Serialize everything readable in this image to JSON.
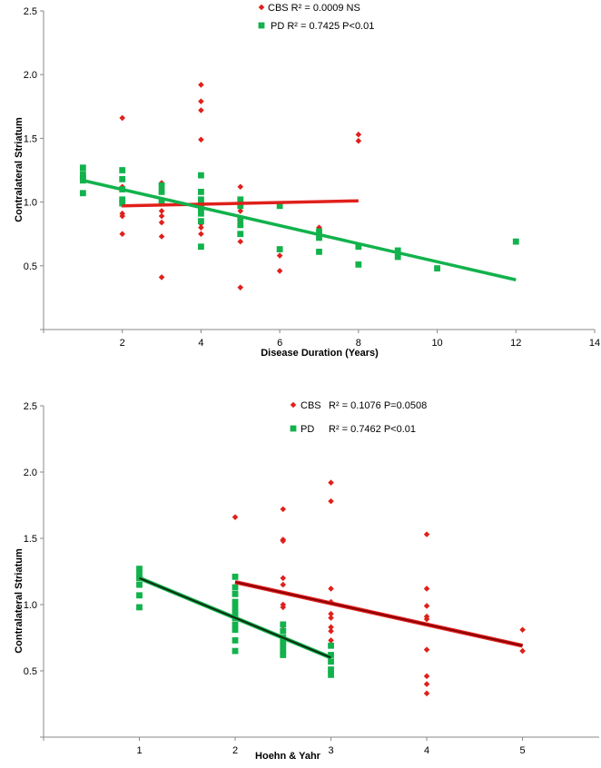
{
  "chart_data": [
    {
      "type": "scatter",
      "xlabel": "Disease Duration (Years)",
      "ylabel": "Contralateral Striatum",
      "xlim": [
        0,
        14
      ],
      "ylim": [
        0,
        2.5
      ],
      "xticks": [
        "2",
        "4",
        "6",
        "8",
        "10",
        "12",
        "14"
      ],
      "yticks": [
        "0.5",
        "1.0",
        "1.5",
        "2.0",
        "2.5"
      ],
      "grid": false,
      "legend_placement": "top-center",
      "series": [
        {
          "name": "CBS",
          "legend_label": "CBS  R² = 0.0009 NS",
          "marker": "diamond",
          "color": "#e0201b",
          "points": [
            [
              2,
              1.66
            ],
            [
              2,
              1.18
            ],
            [
              2,
              1.12
            ],
            [
              2,
              1.02
            ],
            [
              2,
              0.98
            ],
            [
              2,
              0.91
            ],
            [
              2,
              0.89
            ],
            [
              2,
              0.75
            ],
            [
              3,
              1.15
            ],
            [
              3,
              1.1
            ],
            [
              3,
              0.93
            ],
            [
              3,
              0.89
            ],
            [
              3,
              0.84
            ],
            [
              3,
              0.73
            ],
            [
              3,
              0.41
            ],
            [
              4,
              1.92
            ],
            [
              4,
              1.79
            ],
            [
              4,
              1.72
            ],
            [
              4,
              1.49
            ],
            [
              4,
              1.02
            ],
            [
              4,
              0.98
            ],
            [
              4,
              0.92
            ],
            [
              4,
              0.83
            ],
            [
              4,
              0.8
            ],
            [
              4,
              0.75
            ],
            [
              4,
              0.65
            ],
            [
              5,
              1.12
            ],
            [
              5,
              0.93
            ],
            [
              5,
              0.84
            ],
            [
              5,
              0.69
            ],
            [
              5,
              0.33
            ],
            [
              6,
              0.58
            ],
            [
              6,
              0.46
            ],
            [
              7,
              0.8
            ],
            [
              7,
              0.77
            ],
            [
              8,
              1.53
            ],
            [
              8,
              1.48
            ]
          ],
          "trend": {
            "x": [
              2,
              8
            ],
            "y": [
              0.97,
              1.01
            ]
          }
        },
        {
          "name": "PD",
          "legend_label": "PD R² = 0.7425 P<0.01",
          "marker": "square",
          "color": "#12b24c",
          "points": [
            [
              1,
              1.27
            ],
            [
              1,
              1.22
            ],
            [
              1,
              1.19
            ],
            [
              1,
              1.17
            ],
            [
              1,
              1.07
            ],
            [
              2,
              1.25
            ],
            [
              2,
              1.18
            ],
            [
              2,
              1.1
            ],
            [
              2,
              1.02
            ],
            [
              2,
              0.99
            ],
            [
              3,
              1.13
            ],
            [
              3,
              1.08
            ],
            [
              3,
              1.0
            ],
            [
              4,
              1.21
            ],
            [
              4,
              1.08
            ],
            [
              4,
              1.02
            ],
            [
              4,
              0.98
            ],
            [
              4,
              0.95
            ],
            [
              4,
              0.91
            ],
            [
              4,
              0.85
            ],
            [
              4,
              0.65
            ],
            [
              5,
              1.02
            ],
            [
              5,
              0.97
            ],
            [
              5,
              0.87
            ],
            [
              5,
              0.82
            ],
            [
              5,
              0.75
            ],
            [
              6,
              0.97
            ],
            [
              6,
              0.63
            ],
            [
              7,
              0.77
            ],
            [
              7,
              0.72
            ],
            [
              7,
              0.61
            ],
            [
              8,
              0.65
            ],
            [
              8,
              0.51
            ],
            [
              9,
              0.62
            ],
            [
              9,
              0.57
            ],
            [
              10,
              0.48
            ],
            [
              12,
              0.69
            ]
          ],
          "trend": {
            "x": [
              1,
              12
            ],
            "y": [
              1.17,
              0.39
            ]
          }
        }
      ]
    },
    {
      "type": "scatter",
      "xlabel": "Hoehn & Yahr",
      "ylabel": "Contralateral Striatum",
      "xlim": [
        0,
        5.8
      ],
      "ylim": [
        0,
        2.5
      ],
      "xticks": [
        "1",
        "2",
        "3",
        "4",
        "5"
      ],
      "yticks": [
        "0.5",
        "1.0",
        "1.5",
        "2.0",
        "2.5"
      ],
      "grid": false,
      "legend_placement": "top-right",
      "series": [
        {
          "name": "CBS",
          "legend_label": "CBS",
          "legend_stat": "R² = 0.1076 P=0.0508",
          "marker": "diamond",
          "color": "#e0201b",
          "trend_color": "#8b0000",
          "points": [
            [
              2,
              1.66
            ],
            [
              2.5,
              1.72
            ],
            [
              2.5,
              1.49
            ],
            [
              2.5,
              1.48
            ],
            [
              2.5,
              1.2
            ],
            [
              2.5,
              1.15
            ],
            [
              2.5,
              1.0
            ],
            [
              2.5,
              0.98
            ],
            [
              2.5,
              0.84
            ],
            [
              2.5,
              0.8
            ],
            [
              2.5,
              0.75
            ],
            [
              3,
              1.92
            ],
            [
              3,
              1.78
            ],
            [
              3,
              1.12
            ],
            [
              3,
              1.02
            ],
            [
              3,
              0.93
            ],
            [
              3,
              0.9
            ],
            [
              3,
              0.83
            ],
            [
              3,
              0.8
            ],
            [
              3,
              0.73
            ],
            [
              4,
              1.53
            ],
            [
              4,
              1.12
            ],
            [
              4,
              0.99
            ],
            [
              4,
              0.91
            ],
            [
              4,
              0.89
            ],
            [
              4,
              0.66
            ],
            [
              4,
              0.46
            ],
            [
              4,
              0.4
            ],
            [
              4,
              0.33
            ],
            [
              5,
              0.81
            ],
            [
              5,
              0.65
            ]
          ],
          "trend": {
            "x": [
              2,
              5
            ],
            "y": [
              1.17,
              0.69
            ]
          }
        },
        {
          "name": "PD",
          "legend_label": "PD",
          "legend_stat": "R² = 0.7462 P<0.01",
          "marker": "square",
          "color": "#12b24c",
          "trend_color": "#0f2a12",
          "points": [
            [
              1,
              1.27
            ],
            [
              1,
              1.23
            ],
            [
              1,
              1.2
            ],
            [
              1,
              1.15
            ],
            [
              1,
              1.07
            ],
            [
              1,
              0.98
            ],
            [
              2,
              1.21
            ],
            [
              2,
              1.13
            ],
            [
              2,
              1.08
            ],
            [
              2,
              1.02
            ],
            [
              2,
              0.98
            ],
            [
              2,
              0.94
            ],
            [
              2,
              0.9
            ],
            [
              2,
              0.85
            ],
            [
              2,
              0.81
            ],
            [
              2,
              0.73
            ],
            [
              2,
              0.65
            ],
            [
              2.5,
              0.85
            ],
            [
              2.5,
              0.8
            ],
            [
              2.5,
              0.75
            ],
            [
              2.5,
              0.72
            ],
            [
              2.5,
              0.69
            ],
            [
              2.5,
              0.65
            ],
            [
              2.5,
              0.62
            ],
            [
              3,
              0.69
            ],
            [
              3,
              0.62
            ],
            [
              3,
              0.57
            ],
            [
              3,
              0.51
            ],
            [
              3,
              0.47
            ]
          ],
          "trend": {
            "x": [
              1,
              3
            ],
            "y": [
              1.2,
              0.6
            ]
          }
        }
      ]
    }
  ]
}
